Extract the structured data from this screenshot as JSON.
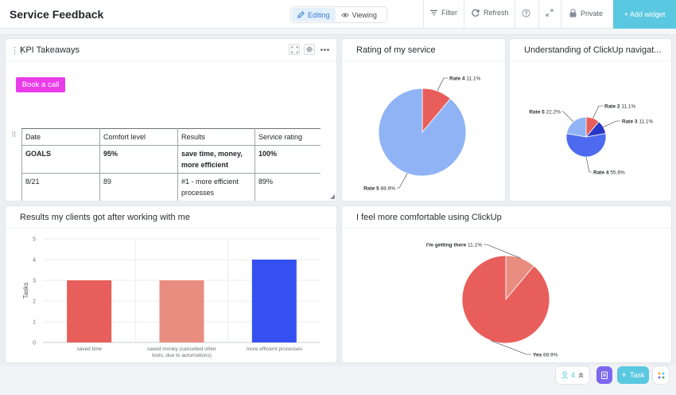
{
  "header": {
    "title": "Service Feedback",
    "mode_editing": "Editing",
    "mode_viewing": "Viewing",
    "filter": "Filter",
    "refresh": "Refresh",
    "private": "Private",
    "add_widget": "+ Add widget"
  },
  "kpi": {
    "title": "KPI Takeaways",
    "button": "Book a call",
    "columns": [
      "Date",
      "Comfort level",
      "Results",
      "Service rating"
    ],
    "rows": [
      [
        "GOALS",
        "95%",
        "save time, money, more efficient",
        "100%"
      ],
      [
        "8/21",
        "89",
        "#1 - more efficient processes",
        "89%"
      ]
    ]
  },
  "cards": {
    "rating_title": "Rating of my service",
    "understanding_title": "Understanding of ClickUp navigat...",
    "results_title": "Results my clients got after working with me",
    "comfort_title": "I feel more comfortable using ClickUp"
  },
  "bottom": {
    "count": "4",
    "task": "Task"
  },
  "colors": {
    "accent": "#5ac8e0",
    "book_button": "#e93ce8",
    "pie_blue": "#8fb3f5",
    "pie_red": "#e85e5a",
    "pie_salmon": "#e98d80",
    "pie_royal": "#4e6bf0",
    "pie_navy": "#2737c7"
  },
  "chart_data": [
    {
      "type": "pie",
      "slices": [
        {
          "label": "Rate 4",
          "value": 11.1,
          "color": "#e85e5a"
        },
        {
          "label": "Rate 5",
          "value": 88.9,
          "color": "#8fb3f5"
        }
      ]
    },
    {
      "type": "pie",
      "slices": [
        {
          "label": "Rate 2",
          "value": 11.1,
          "color": "#e85e5a"
        },
        {
          "label": "Rate 3",
          "value": 11.1,
          "color": "#2737c7"
        },
        {
          "label": "Rate 4",
          "value": 55.6,
          "color": "#4e6bf0"
        },
        {
          "label": "Rate 5",
          "value": 22.2,
          "color": "#8fb3f5"
        }
      ]
    },
    {
      "type": "bar",
      "categories": [
        "saved time",
        "saved money (cancelled other tools, due to automations)",
        "more efficient processes"
      ],
      "category_lines": [
        [
          "saved time"
        ],
        [
          "saved money (cancelled other",
          "tools, due to automations)"
        ],
        [
          "more efficient processes"
        ]
      ],
      "values": [
        3,
        3,
        4
      ],
      "colors": [
        "#e85e5a",
        "#e98d80",
        "#3550f0"
      ],
      "ylabel": "Tasks",
      "ylim": [
        0,
        5
      ],
      "yticks": [
        0,
        1,
        2,
        3,
        4,
        5
      ],
      "grid": true
    },
    {
      "type": "pie",
      "slices": [
        {
          "label": "I'm getting there",
          "value": 11.1,
          "color": "#e98d80"
        },
        {
          "label": "Yes",
          "value": 88.9,
          "color": "#e85e5a"
        }
      ]
    }
  ]
}
